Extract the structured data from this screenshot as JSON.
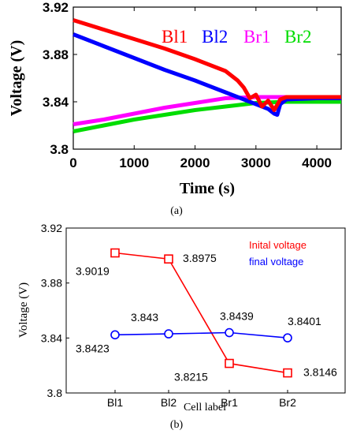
{
  "chart_data": [
    {
      "type": "line",
      "panel_label": "(a)",
      "xlabel": "Time (s)",
      "ylabel": "Voltage (V)",
      "xlim": [
        0,
        4400
      ],
      "ylim": [
        3.8,
        3.92
      ],
      "xticks": [
        "0",
        "1000",
        "2000",
        "3000",
        "4000"
      ],
      "yticks": [
        "3.8",
        "3.84",
        "3.88",
        "3.92"
      ],
      "series": [
        {
          "name": "Bl1",
          "color": "#ff0000",
          "x": [
            0,
            500,
            1000,
            1500,
            2000,
            2500,
            2700,
            2800,
            2900,
            3000,
            3100,
            3200,
            3300,
            3400,
            3500,
            4000,
            4400
          ],
          "y": [
            3.909,
            3.901,
            3.893,
            3.885,
            3.876,
            3.866,
            3.858,
            3.852,
            3.843,
            3.846,
            3.836,
            3.841,
            3.833,
            3.842,
            3.844,
            3.844,
            3.844
          ]
        },
        {
          "name": "Bl2",
          "color": "#0000ff",
          "x": [
            0,
            500,
            1000,
            1500,
            2000,
            2500,
            2800,
            3000,
            3200,
            3300,
            3350,
            3400,
            3500,
            4000,
            4400
          ],
          "y": [
            3.897,
            3.887,
            3.877,
            3.867,
            3.858,
            3.848,
            3.842,
            3.838,
            3.834,
            3.83,
            3.829,
            3.838,
            3.842,
            3.843,
            3.843
          ]
        },
        {
          "name": "Br1",
          "color": "#ff00ff",
          "x": [
            0,
            500,
            1000,
            1500,
            2000,
            2500,
            3000,
            3500,
            4000,
            4400
          ],
          "y": [
            3.821,
            3.825,
            3.83,
            3.835,
            3.839,
            3.843,
            3.844,
            3.844,
            3.844,
            3.844
          ]
        },
        {
          "name": "Br2",
          "color": "#00dd00",
          "x": [
            0,
            500,
            1000,
            1500,
            2000,
            2500,
            3000,
            3500,
            4000,
            4400
          ],
          "y": [
            3.815,
            3.82,
            3.825,
            3.829,
            3.833,
            3.836,
            3.839,
            3.84,
            3.84,
            3.84
          ]
        }
      ],
      "legend_placement": "top-right",
      "grid": false
    },
    {
      "type": "line",
      "panel_label": "(b)",
      "xlabel": "Cell label",
      "ylabel": "Voltage (V)",
      "categories": [
        "Bl1",
        "Bl2",
        "Br1",
        "Br2"
      ],
      "ylim": [
        3.8,
        3.92
      ],
      "yticks": [
        "3.8",
        "3.84",
        "3.88",
        "3.92"
      ],
      "series": [
        {
          "name": "Inital voltage",
          "color": "#ff0000",
          "marker": "square",
          "values": [
            3.9019,
            3.8975,
            3.8215,
            3.8146
          ],
          "labels": [
            "3.9019",
            "3.8975",
            "3.8215",
            "3.8146"
          ]
        },
        {
          "name": "final voltage",
          "color": "#0000ff",
          "marker": "circle",
          "values": [
            3.8423,
            3.843,
            3.8439,
            3.8401
          ],
          "labels": [
            "3.8423",
            "3.843",
            "3.8439",
            "3.8401"
          ]
        }
      ],
      "legend_placement": "top-right",
      "grid": false
    }
  ]
}
